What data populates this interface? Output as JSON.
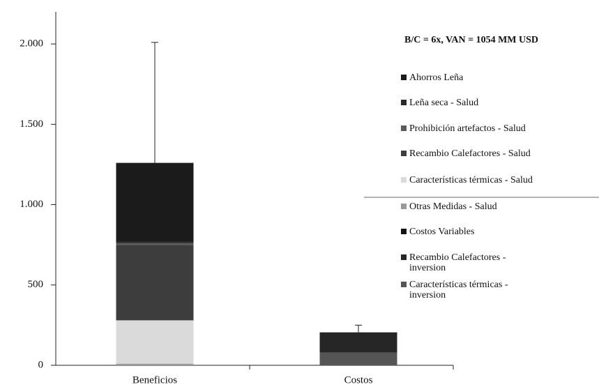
{
  "chart_data": {
    "type": "stacked_bar",
    "annotation": "B/C = 6x, VAN = 1054 MM USD",
    "categories": [
      "Beneficios",
      "Costos"
    ],
    "series": [
      {
        "name": "Ahorros Leña",
        "color": "#1b1b1b",
        "values": [
          490,
          null
        ]
      },
      {
        "name": "Leña seca - Salud",
        "color": "#2b2b2b",
        "values": [
          10,
          null
        ]
      },
      {
        "name": "Prohibición artefactos - Salud",
        "color": "#5a5a5a",
        "values": [
          10,
          null
        ]
      },
      {
        "name": "Recambio Calefactores - Salud",
        "color": "#3d3d3d",
        "values": [
          470,
          null
        ]
      },
      {
        "name": "Características térmicas - Salud",
        "color": "#dadada",
        "values": [
          270,
          null
        ]
      },
      {
        "name": "Otras Medidas - Salud",
        "color": "#9a9a9a",
        "values": [
          10,
          null
        ]
      },
      {
        "name": "Costos Variables",
        "color": "#141414",
        "values": [
          null,
          5
        ]
      },
      {
        "name": "Recambio Calefactores -\ninversion",
        "color": "#262626",
        "values": [
          null,
          120
        ]
      },
      {
        "name": "Características térmicas -\ninversion",
        "color": "#555555",
        "values": [
          null,
          80
        ]
      }
    ],
    "errors": [
      750,
      45
    ],
    "ylim": [
      0,
      2200
    ],
    "yticks": [
      0,
      500,
      {
        "value": 1000,
        "label": "1.000"
      },
      {
        "value": 1500,
        "label": "1.500"
      },
      {
        "value": 2000,
        "label": "2.000"
      }
    ]
  }
}
